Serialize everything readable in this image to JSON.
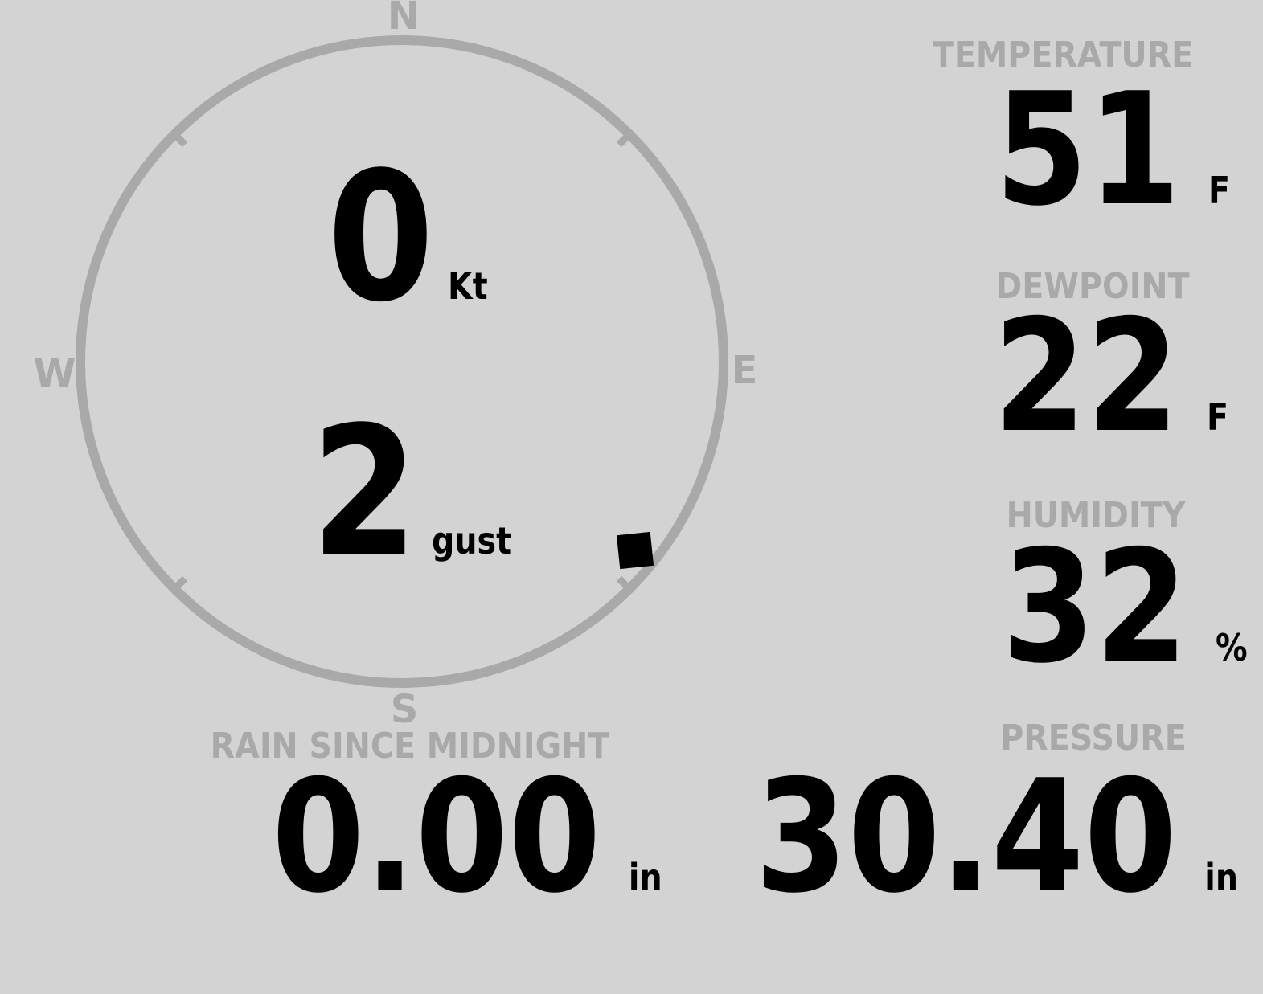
{
  "colors": {
    "background": "#d3d3d3",
    "muted": "#a9a9a9",
    "ink": "#000000"
  },
  "wind": {
    "compass_labels": {
      "north": "N",
      "east": "E",
      "south": "S",
      "west": "W"
    },
    "speed_value": "0",
    "speed_unit": "Kt",
    "gust_value": "2",
    "gust_unit": "gust",
    "direction_deg": 129
  },
  "metrics": {
    "temperature": {
      "label": "TEMPERATURE",
      "value": "51",
      "unit": "F"
    },
    "dewpoint": {
      "label": "DEWPOINT",
      "value": "22",
      "unit": "F"
    },
    "humidity": {
      "label": "HUMIDITY",
      "value": "32",
      "unit": "%"
    },
    "rain": {
      "label": "RAIN SINCE MIDNIGHT",
      "value": "0.00",
      "unit": "in"
    },
    "pressure": {
      "label": "PRESSURE",
      "value": "30.40",
      "unit": "in"
    }
  }
}
